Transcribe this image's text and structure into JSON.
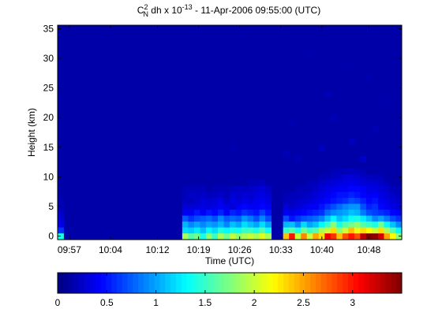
{
  "figure": {
    "title_main": "C",
    "title_sup": "2",
    "title_sub": "N",
    "title_rest1": " dh x 10",
    "title_exp": "-13",
    "title_rest2": " - 11-Apr-2006 09:55:00 (UTC)"
  },
  "chart_data": {
    "type": "heatmap",
    "xlabel": "Time (UTC)",
    "ylabel": "Height (km)",
    "x_tick_labels": [
      "09:57",
      "10:04",
      "10:12",
      "10:19",
      "10:26",
      "10:33",
      "10:40",
      "10:48"
    ],
    "x_tick_minutes": [
      2,
      9,
      17,
      24,
      31,
      38,
      45,
      53
    ],
    "x_range_minutes": [
      0,
      58.6
    ],
    "y_ticks": [
      0,
      5,
      10,
      15,
      20,
      25,
      30,
      35
    ],
    "y_range": [
      -0.6,
      35.6
    ],
    "grid": false,
    "colormap": "jet",
    "colorbar": {
      "orientation": "horizontal",
      "position": "bottom",
      "range": [
        0,
        3.5
      ],
      "ticks": [
        0,
        0.5,
        1,
        1.5,
        2,
        2.5,
        3
      ]
    },
    "column_minutes": [
      0,
      1,
      2,
      3,
      4,
      5,
      6,
      7,
      8,
      9,
      10,
      11,
      12,
      13,
      14,
      15,
      16,
      17,
      18,
      19,
      20,
      21,
      22,
      23,
      24,
      25,
      26,
      27,
      28,
      29,
      30,
      31,
      32,
      33,
      34,
      35,
      36,
      37,
      38,
      39,
      40,
      41,
      42,
      43,
      44,
      45,
      46,
      47,
      48,
      49,
      50,
      51,
      52,
      53,
      54,
      55,
      56,
      57
    ],
    "row_heights_km": [
      0,
      1,
      2,
      3,
      4,
      5,
      6,
      7,
      8,
      9,
      10,
      11,
      12
    ],
    "background_value": 0.12,
    "values_km_rows_by_column": [
      [
        1.4,
        0.6,
        0.35,
        0.3,
        0.25,
        0.2,
        0.18,
        0.15,
        0.12,
        0.12,
        0.12,
        0.12,
        0.12
      ],
      [
        0.12,
        0.12,
        0.12,
        0.12,
        0.12,
        0.12,
        0.12,
        0.12,
        0.12,
        0.12,
        0.12,
        0.12,
        0.12
      ],
      [
        0.12,
        0.12,
        0.12,
        0.12,
        0.12,
        0.12,
        0.12,
        0.12,
        0.12,
        0.12,
        0.12,
        0.12,
        0.12
      ],
      [
        0.12,
        0.12,
        0.12,
        0.12,
        0.12,
        0.12,
        0.12,
        0.12,
        0.12,
        0.12,
        0.12,
        0.12,
        0.12
      ],
      [
        0.12,
        0.12,
        0.12,
        0.12,
        0.12,
        0.12,
        0.12,
        0.12,
        0.12,
        0.12,
        0.12,
        0.12,
        0.12
      ],
      [
        0.12,
        0.12,
        0.12,
        0.12,
        0.12,
        0.12,
        0.12,
        0.12,
        0.12,
        0.12,
        0.12,
        0.12,
        0.12
      ],
      [
        0.12,
        0.12,
        0.12,
        0.12,
        0.12,
        0.12,
        0.12,
        0.12,
        0.12,
        0.12,
        0.12,
        0.12,
        0.12
      ],
      [
        0.12,
        0.12,
        0.12,
        0.12,
        0.12,
        0.12,
        0.12,
        0.12,
        0.12,
        0.12,
        0.12,
        0.12,
        0.12
      ],
      [
        0.12,
        0.12,
        0.12,
        0.12,
        0.12,
        0.12,
        0.12,
        0.12,
        0.12,
        0.12,
        0.12,
        0.12,
        0.12
      ],
      [
        0.12,
        0.12,
        0.12,
        0.12,
        0.12,
        0.12,
        0.12,
        0.12,
        0.12,
        0.12,
        0.12,
        0.12,
        0.12
      ],
      [
        0.12,
        0.12,
        0.12,
        0.12,
        0.12,
        0.12,
        0.12,
        0.12,
        0.12,
        0.12,
        0.12,
        0.12,
        0.12
      ],
      [
        0.12,
        0.12,
        0.12,
        0.12,
        0.12,
        0.12,
        0.12,
        0.12,
        0.12,
        0.12,
        0.12,
        0.12,
        0.12
      ],
      [
        0.12,
        0.12,
        0.12,
        0.12,
        0.12,
        0.12,
        0.12,
        0.12,
        0.12,
        0.12,
        0.12,
        0.12,
        0.12
      ],
      [
        0.12,
        0.12,
        0.12,
        0.12,
        0.12,
        0.12,
        0.12,
        0.12,
        0.12,
        0.12,
        0.12,
        0.12,
        0.12
      ],
      [
        0.12,
        0.12,
        0.12,
        0.12,
        0.12,
        0.12,
        0.12,
        0.12,
        0.12,
        0.12,
        0.12,
        0.12,
        0.12
      ],
      [
        0.12,
        0.12,
        0.12,
        0.12,
        0.12,
        0.12,
        0.12,
        0.12,
        0.12,
        0.12,
        0.12,
        0.12,
        0.12
      ],
      [
        0.12,
        0.12,
        0.12,
        0.12,
        0.12,
        0.12,
        0.12,
        0.12,
        0.12,
        0.12,
        0.12,
        0.12,
        0.12
      ],
      [
        0.12,
        0.12,
        0.12,
        0.12,
        0.12,
        0.12,
        0.12,
        0.12,
        0.12,
        0.12,
        0.12,
        0.12,
        0.12
      ],
      [
        0.12,
        0.12,
        0.12,
        0.12,
        0.12,
        0.12,
        0.12,
        0.12,
        0.12,
        0.12,
        0.12,
        0.12,
        0.12
      ],
      [
        0.12,
        0.12,
        0.12,
        0.12,
        0.12,
        0.12,
        0.12,
        0.12,
        0.12,
        0.12,
        0.12,
        0.12,
        0.12
      ],
      [
        0.12,
        0.12,
        0.12,
        0.12,
        0.12,
        0.12,
        0.12,
        0.12,
        0.12,
        0.12,
        0.12,
        0.12,
        0.12
      ],
      [
        1.9,
        1.2,
        1.05,
        0.75,
        0.4,
        0.3,
        0.22,
        0.2,
        0.18,
        0.12,
        0.12,
        0.12,
        0.12
      ],
      [
        1.6,
        1.15,
        0.9,
        0.6,
        0.38,
        0.3,
        0.2,
        0.25,
        0.18,
        0.12,
        0.12,
        0.12,
        0.12
      ],
      [
        1.7,
        1.25,
        1.0,
        0.7,
        0.5,
        0.3,
        0.25,
        0.22,
        0.2,
        0.12,
        0.12,
        0.12,
        0.12
      ],
      [
        1.4,
        1.1,
        0.9,
        0.75,
        0.4,
        0.35,
        0.3,
        0.25,
        0.2,
        0.12,
        0.12,
        0.12,
        0.12
      ],
      [
        1.8,
        1.3,
        1.0,
        0.8,
        0.5,
        0.3,
        0.28,
        0.2,
        0.15,
        0.12,
        0.12,
        0.12,
        0.12
      ],
      [
        1.5,
        1.2,
        0.95,
        0.7,
        0.45,
        0.35,
        0.3,
        0.22,
        0.18,
        0.12,
        0.12,
        0.12,
        0.12
      ],
      [
        1.9,
        1.4,
        1.05,
        0.9,
        0.55,
        0.4,
        0.35,
        0.25,
        0.2,
        0.12,
        0.12,
        0.12,
        0.12
      ],
      [
        1.7,
        1.3,
        0.9,
        0.75,
        0.4,
        0.35,
        0.25,
        0.2,
        0.18,
        0.12,
        0.12,
        0.12,
        0.12
      ],
      [
        2.0,
        1.4,
        1.1,
        0.8,
        0.55,
        0.3,
        0.35,
        0.3,
        0.22,
        0.12,
        0.12,
        0.12,
        0.12
      ],
      [
        1.8,
        1.35,
        1.0,
        0.75,
        0.5,
        0.4,
        0.3,
        0.25,
        0.25,
        0.15,
        0.12,
        0.12,
        0.12
      ],
      [
        1.9,
        1.5,
        1.2,
        0.95,
        0.6,
        0.45,
        0.35,
        0.3,
        0.22,
        0.15,
        0.12,
        0.12,
        0.12
      ],
      [
        2.0,
        1.5,
        1.1,
        0.85,
        0.55,
        0.4,
        0.32,
        0.28,
        0.25,
        0.18,
        0.12,
        0.12,
        0.12
      ],
      [
        1.9,
        1.4,
        1.0,
        0.7,
        0.5,
        0.4,
        0.38,
        0.32,
        0.28,
        0.2,
        0.15,
        0.12,
        0.12
      ],
      [
        2.1,
        1.6,
        1.2,
        0.9,
        0.65,
        0.45,
        0.4,
        0.35,
        0.3,
        0.22,
        0.15,
        0.12,
        0.12
      ],
      [
        1.9,
        1.35,
        1.0,
        0.7,
        0.5,
        0.4,
        0.35,
        0.3,
        0.25,
        0.15,
        0.12,
        0.12,
        0.12
      ],
      [
        0.12,
        0.12,
        0.12,
        0.12,
        0.12,
        0.12,
        0.12,
        0.12,
        0.12,
        0.12,
        0.12,
        0.12,
        0.12
      ],
      [
        0.12,
        0.12,
        0.12,
        0.12,
        0.12,
        0.12,
        0.12,
        0.12,
        0.12,
        0.12,
        0.12,
        0.12,
        0.12
      ],
      [
        2.4,
        1.5,
        1.05,
        0.7,
        0.4,
        0.3,
        0.2,
        0.18,
        0.15,
        0.12,
        0.12,
        0.12,
        0.12
      ],
      [
        3.0,
        1.6,
        1.1,
        0.5,
        0.35,
        0.25,
        0.22,
        0.2,
        0.15,
        0.12,
        0.12,
        0.12,
        0.12
      ],
      [
        2.0,
        1.4,
        0.9,
        0.6,
        0.4,
        0.3,
        0.25,
        0.2,
        0.18,
        0.12,
        0.12,
        0.12,
        0.12
      ],
      [
        2.6,
        1.7,
        1.2,
        0.7,
        0.45,
        0.35,
        0.28,
        0.22,
        0.2,
        0.15,
        0.12,
        0.12,
        0.12
      ],
      [
        2.0,
        1.5,
        1.0,
        0.75,
        0.5,
        0.4,
        0.3,
        0.25,
        0.2,
        0.18,
        0.12,
        0.12,
        0.12
      ],
      [
        2.5,
        1.6,
        1.1,
        0.8,
        0.55,
        0.4,
        0.35,
        0.3,
        0.25,
        0.2,
        0.15,
        0.12,
        0.12
      ],
      [
        2.3,
        1.9,
        1.3,
        0.9,
        0.6,
        0.5,
        0.4,
        0.35,
        0.3,
        0.25,
        0.18,
        0.12,
        0.12
      ],
      [
        3.1,
        2.0,
        1.5,
        1.1,
        0.8,
        0.6,
        0.45,
        0.4,
        0.35,
        0.28,
        0.2,
        0.15,
        0.12
      ],
      [
        2.9,
        2.3,
        1.8,
        1.3,
        0.9,
        0.7,
        0.5,
        0.45,
        0.38,
        0.3,
        0.25,
        0.18,
        0.12
      ],
      [
        2.4,
        1.8,
        1.4,
        1.1,
        0.95,
        0.8,
        0.55,
        0.5,
        0.4,
        0.35,
        0.25,
        0.2,
        0.15
      ],
      [
        2.8,
        2.0,
        1.6,
        1.2,
        1.0,
        0.9,
        0.6,
        0.5,
        0.4,
        0.35,
        0.3,
        0.2,
        0.15
      ],
      [
        3.0,
        2.4,
        1.7,
        1.35,
        1.1,
        0.95,
        0.7,
        0.55,
        0.45,
        0.38,
        0.3,
        0.22,
        0.15
      ],
      [
        2.8,
        2.1,
        1.8,
        1.4,
        1.05,
        0.95,
        0.65,
        0.5,
        0.45,
        0.35,
        0.28,
        0.2,
        0.15
      ],
      [
        3.3,
        2.3,
        1.6,
        1.25,
        0.85,
        0.7,
        0.55,
        0.45,
        0.4,
        0.3,
        0.25,
        0.18,
        0.12
      ],
      [
        3.5,
        2.2,
        1.5,
        1.1,
        0.7,
        0.55,
        0.45,
        0.4,
        0.35,
        0.3,
        0.22,
        0.15,
        0.12
      ],
      [
        3.45,
        2.0,
        1.4,
        0.9,
        0.65,
        0.6,
        0.5,
        0.42,
        0.35,
        0.28,
        0.2,
        0.15,
        0.12
      ],
      [
        3.2,
        2.3,
        1.7,
        1.0,
        0.6,
        0.45,
        0.4,
        0.35,
        0.3,
        0.25,
        0.2,
        0.15,
        0.12
      ],
      [
        2.5,
        1.9,
        1.3,
        0.85,
        0.55,
        0.4,
        0.35,
        0.3,
        0.28,
        0.2,
        0.15,
        0.12,
        0.12
      ],
      [
        2.2,
        1.6,
        1.1,
        0.7,
        0.45,
        0.35,
        0.3,
        0.25,
        0.2,
        0.15,
        0.12,
        0.12,
        0.12
      ],
      [
        1.8,
        1.3,
        0.9,
        0.6,
        0.4,
        0.3,
        0.25,
        0.2,
        0.18,
        0.12,
        0.12,
        0.12,
        0.12
      ]
    ],
    "upper_noise": [
      {
        "col": 38,
        "row_km": 14,
        "value": 0.2
      },
      {
        "col": 40,
        "row_km": 13,
        "value": 0.18
      },
      {
        "col": 44,
        "row_km": 15,
        "value": 0.22
      },
      {
        "col": 46,
        "row_km": 20,
        "value": 0.18
      },
      {
        "col": 49,
        "row_km": 16,
        "value": 0.2
      },
      {
        "col": 51,
        "row_km": 13,
        "value": 0.25
      },
      {
        "col": 53,
        "row_km": 18,
        "value": 0.18
      },
      {
        "col": 55,
        "row_km": 23,
        "value": 0.17
      },
      {
        "col": 29,
        "row_km": 15,
        "value": 0.16
      },
      {
        "col": 33,
        "row_km": 17,
        "value": 0.15
      },
      {
        "col": 36,
        "row_km": 26,
        "value": 0.15
      },
      {
        "col": 42,
        "row_km": 31,
        "value": 0.16
      },
      {
        "col": 48,
        "row_km": 29,
        "value": 0.17
      },
      {
        "col": 26,
        "row_km": 33,
        "value": 0.15
      },
      {
        "col": 31,
        "row_km": 28,
        "value": 0.15
      },
      {
        "col": 45,
        "row_km": 24,
        "value": 0.18
      },
      {
        "col": 52,
        "row_km": 27,
        "value": 0.17
      },
      {
        "col": 39,
        "row_km": 19,
        "value": 0.17
      }
    ]
  }
}
